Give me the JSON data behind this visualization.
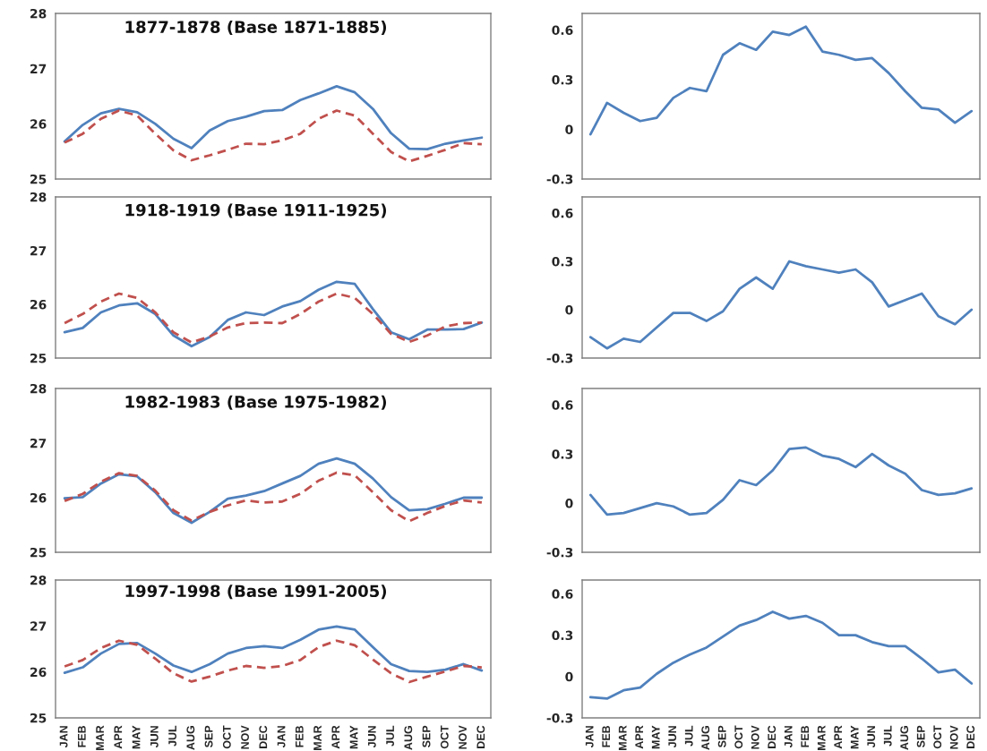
{
  "chart_data": [
    {
      "type": "line",
      "title": "1877-1878 (Base 1871-1885)",
      "categories": [
        null,
        null,
        null,
        null,
        null,
        null,
        null,
        null,
        null,
        null,
        null,
        null,
        null,
        null,
        null,
        null,
        null,
        null,
        null,
        null,
        null,
        null,
        null,
        null
      ],
      "series": [
        {
          "color": "#4f81bd",
          "line_style": "solid",
          "values": [
            25.68,
            25.98,
            26.19,
            26.27,
            26.21,
            26.0,
            25.73,
            25.56,
            25.88,
            26.05,
            26.13,
            26.23,
            26.25,
            26.43,
            26.55,
            26.68,
            26.57,
            26.27,
            25.83,
            25.55,
            25.54,
            25.64,
            25.7,
            25.75
          ]
        },
        {
          "color": "#c0504d",
          "line_style": "dashed",
          "values": [
            25.66,
            25.82,
            26.09,
            26.24,
            26.15,
            25.82,
            25.52,
            25.34,
            25.43,
            25.53,
            25.64,
            25.63,
            25.7,
            25.82,
            26.09,
            26.24,
            26.15,
            25.82,
            25.49,
            25.32,
            25.42,
            25.53,
            25.65,
            25.63
          ]
        }
      ],
      "ylim": [
        25,
        28
      ],
      "yticks": [
        25,
        26,
        27,
        28
      ],
      "tick_labels": "y"
    },
    {
      "type": "line",
      "categories": [
        null,
        null,
        null,
        null,
        null,
        null,
        null,
        null,
        null,
        null,
        null,
        null,
        null,
        null,
        null,
        null,
        null,
        null,
        null,
        null,
        null,
        null,
        null,
        null
      ],
      "series": [
        {
          "color": "#4f81bd",
          "line_style": "solid",
          "values": [
            -0.03,
            0.16,
            0.1,
            0.05,
            0.07,
            0.19,
            0.25,
            0.23,
            0.45,
            0.52,
            0.48,
            0.59,
            0.57,
            0.62,
            0.47,
            0.45,
            0.42,
            0.43,
            0.34,
            0.23,
            0.13,
            0.12,
            0.04,
            0.11
          ]
        }
      ],
      "ylim": [
        -0.3,
        0.7
      ],
      "yticks": [
        -0.3,
        0,
        0.3,
        0.6
      ],
      "tick_labels": "y"
    },
    {
      "type": "line",
      "title": "1918-1919 (Base 1911-1925)",
      "categories": [
        null,
        null,
        null,
        null,
        null,
        null,
        null,
        null,
        null,
        null,
        null,
        null,
        null,
        null,
        null,
        null,
        null,
        null,
        null,
        null,
        null,
        null,
        null,
        null
      ],
      "series": [
        {
          "color": "#4f81bd",
          "line_style": "solid",
          "values": [
            25.48,
            25.56,
            25.85,
            25.98,
            26.02,
            25.82,
            25.42,
            25.22,
            25.39,
            25.71,
            25.85,
            25.8,
            25.96,
            26.06,
            26.27,
            26.42,
            26.38,
            25.91,
            25.48,
            25.35,
            25.53,
            25.53,
            25.54,
            25.66
          ]
        },
        {
          "color": "#c0504d",
          "line_style": "dashed",
          "values": [
            25.65,
            25.82,
            26.05,
            26.2,
            26.12,
            25.85,
            25.48,
            25.29,
            25.4,
            25.57,
            25.65,
            25.66,
            25.65,
            25.82,
            26.05,
            26.2,
            26.12,
            25.82,
            25.45,
            25.3,
            25.42,
            25.59,
            25.65,
            25.66
          ]
        }
      ],
      "ylim": [
        25,
        28
      ],
      "yticks": [
        25,
        26,
        27,
        28
      ],
      "tick_labels": "y"
    },
    {
      "type": "line",
      "categories": [
        null,
        null,
        null,
        null,
        null,
        null,
        null,
        null,
        null,
        null,
        null,
        null,
        null,
        null,
        null,
        null,
        null,
        null,
        null,
        null,
        null,
        null,
        null,
        null
      ],
      "series": [
        {
          "color": "#4f81bd",
          "line_style": "solid",
          "values": [
            -0.17,
            -0.24,
            -0.18,
            -0.2,
            -0.11,
            -0.02,
            -0.02,
            -0.07,
            -0.01,
            0.13,
            0.2,
            0.13,
            0.3,
            0.27,
            0.25,
            0.23,
            0.25,
            0.17,
            0.02,
            0.06,
            0.1,
            -0.04,
            -0.09,
            0.0
          ]
        }
      ],
      "ylim": [
        -0.3,
        0.7
      ],
      "yticks": [
        -0.3,
        0,
        0.3,
        0.6
      ],
      "tick_labels": "y"
    },
    {
      "type": "line",
      "title": "1982-1983 (Base 1975-1982)",
      "categories": [
        null,
        null,
        null,
        null,
        null,
        null,
        null,
        null,
        null,
        null,
        null,
        null,
        null,
        null,
        null,
        null,
        null,
        null,
        null,
        null,
        null,
        null,
        null,
        null
      ],
      "series": [
        {
          "color": "#4f81bd",
          "line_style": "solid",
          "values": [
            25.99,
            26.01,
            26.26,
            26.43,
            26.39,
            26.1,
            25.72,
            25.54,
            25.74,
            25.98,
            26.04,
            26.12,
            26.26,
            26.4,
            26.62,
            26.72,
            26.62,
            26.35,
            26.01,
            25.77,
            25.79,
            25.89,
            26.0,
            26.0
          ]
        },
        {
          "color": "#c0504d",
          "line_style": "dashed",
          "values": [
            25.94,
            26.07,
            26.29,
            26.45,
            26.4,
            26.13,
            25.77,
            25.58,
            25.74,
            25.86,
            25.95,
            25.91,
            25.93,
            26.07,
            26.31,
            26.46,
            26.41,
            26.1,
            25.77,
            25.57,
            25.72,
            25.85,
            25.95,
            25.91
          ]
        }
      ],
      "ylim": [
        25,
        28
      ],
      "yticks": [
        25,
        26,
        27,
        28
      ],
      "tick_labels": "y"
    },
    {
      "type": "line",
      "categories": [
        null,
        null,
        null,
        null,
        null,
        null,
        null,
        null,
        null,
        null,
        null,
        null,
        null,
        null,
        null,
        null,
        null,
        null,
        null,
        null,
        null,
        null,
        null,
        null
      ],
      "series": [
        {
          "color": "#4f81bd",
          "line_style": "solid",
          "values": [
            0.05,
            -0.07,
            -0.06,
            -0.03,
            0.0,
            -0.02,
            -0.07,
            -0.06,
            0.02,
            0.14,
            0.11,
            0.2,
            0.33,
            0.34,
            0.29,
            0.27,
            0.22,
            0.3,
            0.23,
            0.18,
            0.08,
            0.05,
            0.06,
            0.09
          ]
        }
      ],
      "ylim": [
        -0.3,
        0.7
      ],
      "yticks": [
        -0.3,
        0,
        0.3,
        0.6
      ],
      "tick_labels": "y"
    },
    {
      "type": "line",
      "title": "1997-1998 (Base 1991-2005)",
      "categories": [
        "JAN",
        "FEB",
        "MAR",
        "APR",
        "MAY",
        "JUN",
        "JUL",
        "AUG",
        "SEP",
        "OCT",
        "NOV",
        "DEC",
        "JAN",
        "FEB",
        "MAR",
        "APR",
        "MAY",
        "JUN",
        "JUL",
        "AUG",
        "SEP",
        "OCT",
        "NOV",
        "DEC"
      ],
      "series": [
        {
          "color": "#4f81bd",
          "line_style": "solid",
          "values": [
            25.98,
            26.1,
            26.4,
            26.61,
            26.63,
            26.4,
            26.14,
            26.0,
            26.17,
            26.4,
            26.52,
            26.56,
            26.52,
            26.7,
            26.92,
            26.99,
            26.92,
            26.54,
            26.17,
            26.02,
            26.0,
            26.05,
            26.17,
            26.03
          ]
        },
        {
          "color": "#c0504d",
          "line_style": "dashed",
          "values": [
            26.12,
            26.26,
            26.52,
            26.68,
            26.59,
            26.29,
            25.97,
            25.79,
            25.9,
            26.03,
            26.13,
            26.09,
            26.13,
            26.26,
            26.54,
            26.68,
            26.58,
            26.27,
            25.97,
            25.78,
            25.9,
            26.01,
            26.13,
            26.1
          ]
        }
      ],
      "ylim": [
        25,
        28
      ],
      "yticks": [
        25,
        26,
        27,
        28
      ]
    },
    {
      "type": "line",
      "categories": [
        "JAN",
        "FEB",
        "MAR",
        "APR",
        "MAY",
        "JUN",
        "JUL",
        "AUG",
        "SEP",
        "OCT",
        "NOV",
        "DEC",
        "JAN",
        "FEB",
        "MAR",
        "APR",
        "MAY",
        "JUN",
        "JUL",
        "AUG",
        "SEP",
        "OCT",
        "NOV",
        "DEC"
      ],
      "series": [
        {
          "color": "#4f81bd",
          "line_style": "solid",
          "values": [
            -0.15,
            -0.16,
            -0.1,
            -0.08,
            0.02,
            0.1,
            0.16,
            0.21,
            0.29,
            0.37,
            0.41,
            0.47,
            0.42,
            0.44,
            0.39,
            0.3,
            0.3,
            0.25,
            0.22,
            0.22,
            0.13,
            0.03,
            0.05,
            -0.05
          ]
        }
      ],
      "ylim": [
        -0.3,
        0.7
      ],
      "yticks": [
        -0.3,
        0,
        0.3,
        0.6
      ]
    }
  ]
}
